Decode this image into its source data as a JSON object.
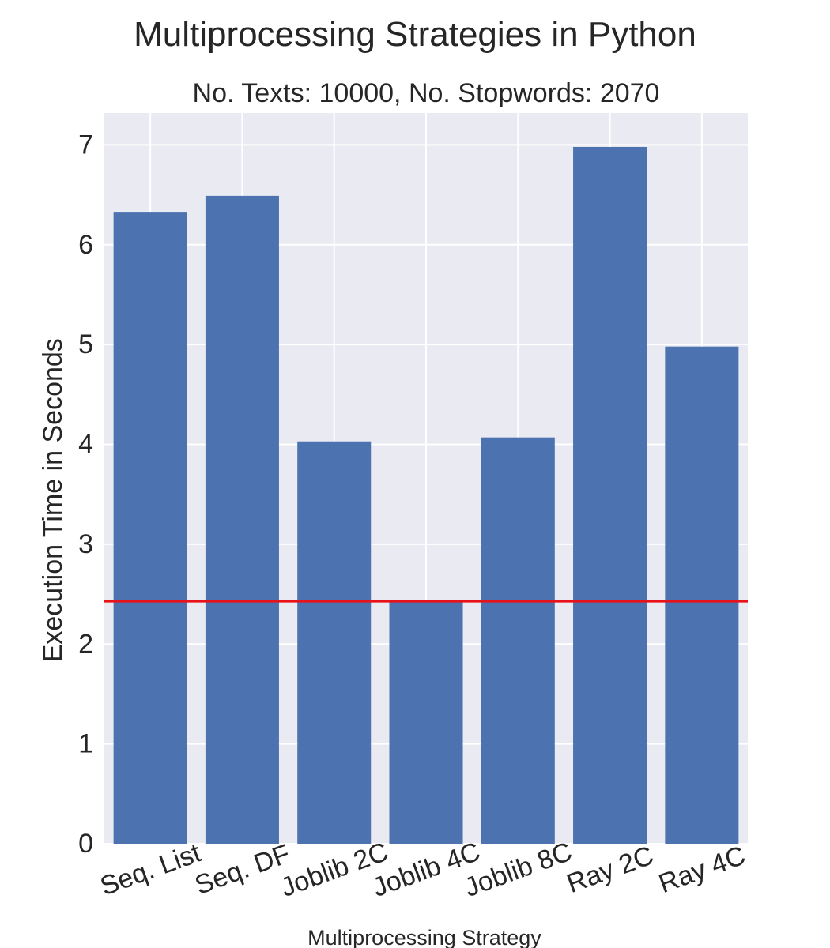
{
  "chart_data": {
    "type": "bar",
    "suptitle": "Multiprocessing Strategies in Python",
    "title": "No. Texts: 10000, No. Stopwords: 2070",
    "xlabel": "Multiprocessing Strategy",
    "ylabel": "Execution Time in Seconds",
    "categories": [
      "Seq. List",
      "Seq. DF",
      "Joblib 2C",
      "Joblib 4C",
      "Joblib 8C",
      "Ray 2C",
      "Ray 4C"
    ],
    "values": [
      6.33,
      6.49,
      4.03,
      2.43,
      4.07,
      6.98,
      4.98
    ],
    "ylim": [
      0,
      7.32
    ],
    "yticks": [
      0,
      1,
      2,
      3,
      4,
      5,
      6,
      7
    ],
    "reference_line": 2.43,
    "grid": true,
    "legend": "none",
    "colors": {
      "bar": "#4c72b0",
      "reference_line": "#e8121a",
      "plot_background": "#eaeaf2",
      "grid": "#ffffff",
      "text": "#262626"
    }
  }
}
